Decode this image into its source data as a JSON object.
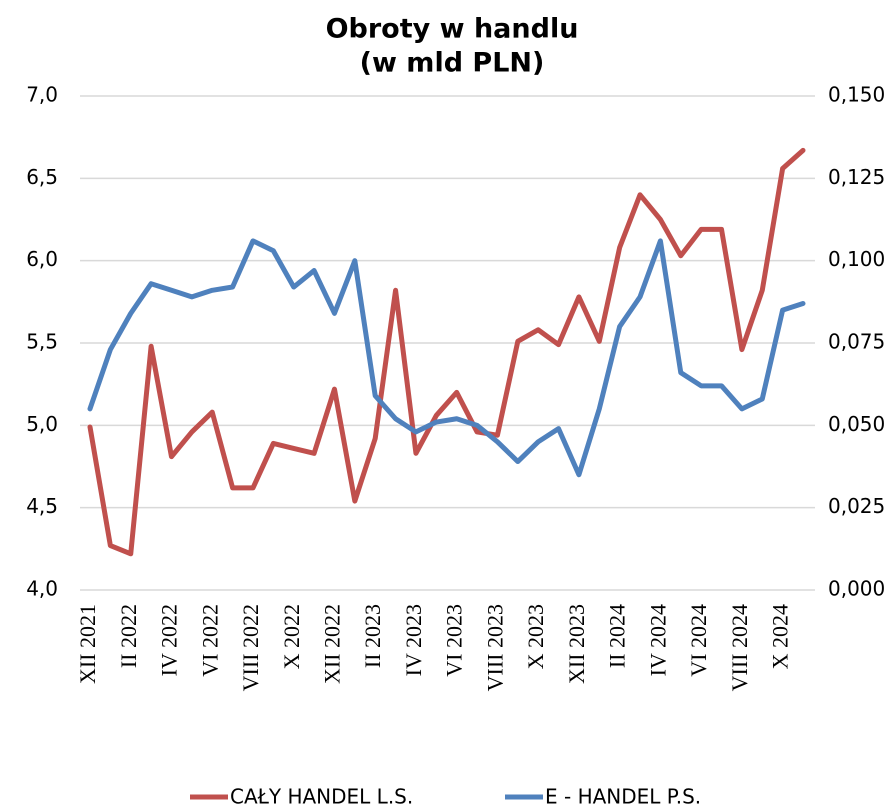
{
  "chart_data": {
    "type": "line",
    "title": [
      "Obroty w handlu",
      "(w mld PLN)"
    ],
    "categories": [
      "XII 2021",
      null,
      "II 2022",
      null,
      "IV 2022",
      null,
      "VI 2022",
      null,
      "VIII 2022",
      null,
      "X 2022",
      null,
      "XII 2022",
      null,
      "II 2023",
      null,
      "IV 2023",
      null,
      "VI 2023",
      null,
      "VIII 2023",
      null,
      "X 2023",
      null,
      "XII 2023",
      null,
      "II 2024",
      null,
      "IV 2024",
      null,
      "VI 2024",
      null,
      "VIII 2024",
      null,
      "X 2024",
      null
    ],
    "series": [
      {
        "name": "CAŁY HANDEL L.S.",
        "color": "#c0504d",
        "axis": "y",
        "values": [
          4.99,
          4.27,
          4.22,
          5.48,
          4.81,
          4.96,
          5.08,
          4.62,
          4.62,
          4.89,
          4.86,
          4.83,
          5.22,
          4.54,
          4.92,
          5.82,
          4.83,
          5.06,
          5.2,
          4.96,
          4.94,
          5.51,
          5.58,
          5.49,
          5.78,
          5.51,
          6.08,
          6.4,
          6.25,
          6.03,
          6.19,
          6.19,
          5.46,
          5.82,
          6.56,
          6.67
        ]
      },
      {
        "name": "E - HANDEL P.S.",
        "color": "#4f81bd",
        "axis": "y2",
        "values": [
          0.055,
          0.073,
          0.084,
          0.093,
          0.091,
          0.089,
          0.091,
          0.092,
          0.106,
          0.103,
          0.092,
          0.097,
          0.084,
          0.1,
          0.059,
          0.052,
          0.048,
          0.051,
          0.052,
          0.05,
          0.045,
          0.039,
          0.045,
          0.049,
          0.035,
          0.055,
          0.08,
          0.089,
          0.106,
          0.066,
          0.062,
          0.062,
          0.055,
          0.058,
          0.085,
          0.087
        ]
      }
    ],
    "ylim": [
      4.0,
      7.0
    ],
    "yticks": [
      {
        "value": 4.0,
        "label": "4,0"
      },
      {
        "value": 4.5,
        "label": "4,5"
      },
      {
        "value": 5.0,
        "label": "5,0"
      },
      {
        "value": 5.5,
        "label": "5,5"
      },
      {
        "value": 6.0,
        "label": "6,0"
      },
      {
        "value": 6.5,
        "label": "6,5"
      },
      {
        "value": 7.0,
        "label": "7,0"
      }
    ],
    "y2lim": [
      0,
      0.15
    ],
    "y2ticks": [
      {
        "value": 0,
        "label": "0,000"
      },
      {
        "value": 0.025,
        "label": "0,025"
      },
      {
        "value": 0.05,
        "label": "0,050"
      },
      {
        "value": 0.075,
        "label": "0,075"
      },
      {
        "value": 0.1,
        "label": "0,100"
      },
      {
        "value": 0.125,
        "label": "0,125"
      },
      {
        "value": 0.15,
        "label": "0,150"
      }
    ],
    "grid": true,
    "legend": "bottom"
  }
}
